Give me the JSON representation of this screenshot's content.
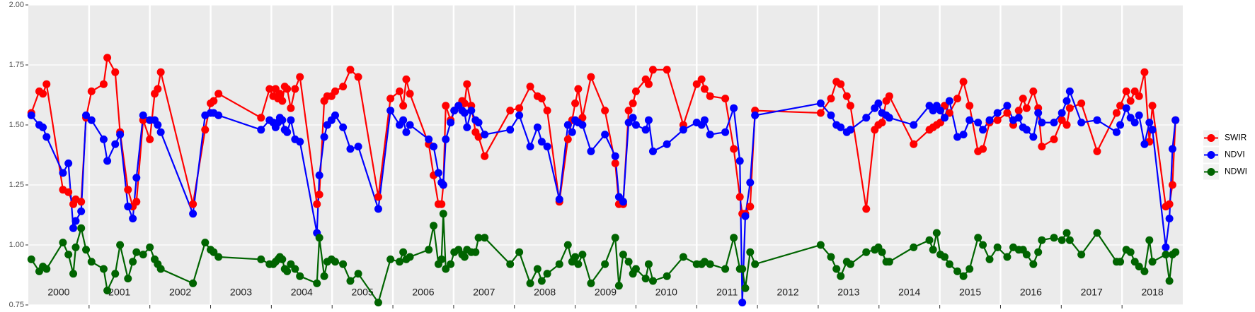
{
  "chart_data": {
    "type": "line",
    "x": [
      2000.05,
      2000.18,
      2000.24,
      2000.3,
      2000.57,
      2000.66,
      2000.74,
      2000.78,
      2000.87,
      2000.95,
      2001.04,
      2001.24,
      2001.3,
      2001.43,
      2001.51,
      2001.64,
      2001.72,
      2001.78,
      2001.89,
      2002.0,
      2002.08,
      2002.13,
      2002.18,
      2002.71,
      2002.91,
      2003.0,
      2003.05,
      2003.13,
      2003.83,
      2003.97,
      2004.03,
      2004.07,
      2004.11,
      2004.14,
      2004.18,
      2004.22,
      2004.26,
      2004.32,
      2004.39,
      2004.47,
      2004.75,
      2004.79,
      2004.87,
      2004.92,
      2004.99,
      2005.05,
      2005.18,
      2005.3,
      2005.43,
      2005.76,
      2005.96,
      2006.11,
      2006.17,
      2006.22,
      2006.28,
      2006.59,
      2006.67,
      2006.75,
      2006.8,
      2006.83,
      2006.87,
      2006.95,
      2007.01,
      2007.08,
      2007.14,
      2007.18,
      2007.22,
      2007.29,
      2007.36,
      2007.41,
      2007.51,
      2007.93,
      2008.08,
      2008.26,
      2008.38,
      2008.45,
      2008.54,
      2008.74,
      2008.88,
      2008.95,
      2009.0,
      2009.05,
      2009.12,
      2009.26,
      2009.49,
      2009.66,
      2009.72,
      2009.79,
      2009.88,
      2009.95,
      2010.0,
      2010.16,
      2010.21,
      2010.28,
      2010.51,
      2010.78,
      2011.0,
      2011.08,
      2011.13,
      2011.22,
      2011.47,
      2011.61,
      2011.71,
      2011.75,
      2011.8,
      2011.88,
      2011.96,
      2013.04,
      2013.21,
      2013.3,
      2013.37,
      2013.47,
      2013.53,
      2013.79,
      2013.93,
      2013.99,
      2014.05,
      2014.12,
      2014.17,
      2014.57,
      2014.83,
      2014.89,
      2014.95,
      2015.01,
      2015.08,
      2015.16,
      2015.29,
      2015.39,
      2015.49,
      2015.63,
      2015.71,
      2015.82,
      2015.95,
      2016.11,
      2016.21,
      2016.3,
      2016.37,
      2016.43,
      2016.54,
      2016.62,
      2016.68,
      2016.88,
      2017.01,
      2017.09,
      2017.14,
      2017.33,
      2017.59,
      2017.91,
      2017.97,
      2018.07,
      2018.14,
      2018.21,
      2018.28,
      2018.37,
      2018.45,
      2018.5,
      2018.72,
      2018.78,
      2018.83,
      2018.88
    ],
    "series": [
      {
        "name": "SWIR",
        "color": "#ff0000",
        "values": [
          1.55,
          1.64,
          1.63,
          1.67,
          1.23,
          1.22,
          1.17,
          1.19,
          1.18,
          1.53,
          1.64,
          1.67,
          1.78,
          1.72,
          1.47,
          1.23,
          1.16,
          1.18,
          1.52,
          1.44,
          1.63,
          1.65,
          1.72,
          1.17,
          1.48,
          1.59,
          1.6,
          1.63,
          1.53,
          1.65,
          1.62,
          1.65,
          1.61,
          1.63,
          1.6,
          1.66,
          1.65,
          1.57,
          1.65,
          1.7,
          1.17,
          1.21,
          1.6,
          1.62,
          1.62,
          1.64,
          1.66,
          1.73,
          1.7,
          1.2,
          1.61,
          1.64,
          1.58,
          1.69,
          1.63,
          1.42,
          1.29,
          1.17,
          1.17,
          1.25,
          1.58,
          1.52,
          1.56,
          1.58,
          1.6,
          1.59,
          1.67,
          1.58,
          1.47,
          1.45,
          1.37,
          1.56,
          1.57,
          1.66,
          1.62,
          1.61,
          1.56,
          1.18,
          1.44,
          1.52,
          1.59,
          1.65,
          1.53,
          1.7,
          1.56,
          1.34,
          1.17,
          1.17,
          1.56,
          1.59,
          1.64,
          1.69,
          1.67,
          1.73,
          1.73,
          1.5,
          1.67,
          1.69,
          1.65,
          1.62,
          1.61,
          1.4,
          1.2,
          1.13,
          1.13,
          1.16,
          1.56,
          1.55,
          1.61,
          1.68,
          1.67,
          1.62,
          1.58,
          1.15,
          1.48,
          1.5,
          1.51,
          1.6,
          1.62,
          1.42,
          1.48,
          1.49,
          1.5,
          1.51,
          1.58,
          1.55,
          1.61,
          1.68,
          1.58,
          1.39,
          1.4,
          1.51,
          1.52,
          1.55,
          1.5,
          1.56,
          1.61,
          1.57,
          1.64,
          1.57,
          1.41,
          1.44,
          1.52,
          1.5,
          1.57,
          1.59,
          1.39,
          1.55,
          1.58,
          1.64,
          1.6,
          1.64,
          1.62,
          1.72,
          1.43,
          1.58,
          1.16,
          1.17,
          1.25,
          1.52
        ]
      },
      {
        "name": "NDVI",
        "color": "#0000ff",
        "values": [
          1.54,
          1.5,
          1.49,
          1.45,
          1.3,
          1.34,
          1.07,
          1.1,
          1.14,
          1.54,
          1.52,
          1.44,
          1.35,
          1.42,
          1.46,
          1.16,
          1.11,
          1.28,
          1.54,
          1.52,
          1.52,
          1.5,
          1.47,
          1.13,
          1.54,
          1.55,
          1.55,
          1.54,
          1.48,
          1.52,
          1.51,
          1.49,
          1.51,
          1.53,
          1.52,
          1.48,
          1.47,
          1.52,
          1.44,
          1.43,
          1.05,
          1.29,
          1.45,
          1.5,
          1.52,
          1.54,
          1.49,
          1.4,
          1.41,
          1.15,
          1.56,
          1.5,
          1.52,
          1.47,
          1.5,
          1.44,
          1.41,
          1.3,
          1.26,
          1.25,
          1.44,
          1.51,
          1.56,
          1.58,
          1.56,
          1.55,
          1.49,
          1.56,
          1.52,
          1.51,
          1.46,
          1.48,
          1.54,
          1.41,
          1.49,
          1.43,
          1.41,
          1.19,
          1.5,
          1.47,
          1.52,
          1.51,
          1.5,
          1.39,
          1.46,
          1.37,
          1.2,
          1.18,
          1.51,
          1.53,
          1.5,
          1.48,
          1.52,
          1.39,
          1.42,
          1.48,
          1.51,
          1.5,
          1.52,
          1.46,
          1.47,
          1.57,
          1.35,
          0.76,
          1.12,
          1.26,
          1.54,
          1.59,
          1.54,
          1.5,
          1.49,
          1.47,
          1.48,
          1.53,
          1.57,
          1.59,
          1.55,
          1.54,
          1.53,
          1.5,
          1.58,
          1.56,
          1.58,
          1.56,
          1.53,
          1.6,
          1.45,
          1.46,
          1.52,
          1.51,
          1.48,
          1.52,
          1.55,
          1.58,
          1.52,
          1.53,
          1.49,
          1.48,
          1.45,
          1.55,
          1.51,
          1.51,
          1.55,
          1.6,
          1.64,
          1.51,
          1.52,
          1.47,
          1.5,
          1.57,
          1.53,
          1.51,
          1.54,
          1.42,
          1.51,
          1.48,
          0.99,
          1.11,
          1.4,
          1.52
        ]
      },
      {
        "name": "NDWI",
        "color": "#006400",
        "values": [
          0.94,
          0.89,
          0.91,
          0.9,
          1.01,
          0.96,
          0.88,
          0.99,
          1.07,
          0.98,
          0.93,
          0.9,
          0.81,
          0.88,
          1.0,
          0.86,
          0.93,
          0.97,
          0.96,
          0.99,
          0.94,
          0.92,
          0.9,
          0.84,
          1.01,
          0.98,
          0.97,
          0.95,
          0.94,
          0.92,
          0.92,
          0.93,
          0.94,
          0.95,
          0.94,
          0.9,
          0.89,
          0.92,
          0.9,
          0.87,
          0.84,
          1.03,
          0.87,
          0.93,
          0.94,
          0.93,
          0.92,
          0.85,
          0.88,
          0.76,
          0.94,
          0.93,
          0.97,
          0.94,
          0.95,
          0.98,
          1.08,
          0.92,
          0.94,
          1.13,
          0.9,
          0.92,
          0.97,
          0.98,
          0.96,
          0.95,
          0.98,
          0.97,
          0.97,
          1.03,
          1.03,
          0.92,
          0.97,
          0.84,
          0.9,
          0.85,
          0.88,
          0.92,
          1.0,
          0.93,
          0.95,
          0.92,
          0.96,
          0.84,
          0.92,
          1.03,
          0.83,
          0.96,
          0.93,
          0.88,
          0.9,
          0.86,
          0.92,
          0.85,
          0.87,
          0.95,
          0.92,
          0.92,
          0.93,
          0.92,
          0.9,
          1.03,
          0.9,
          0.9,
          0.82,
          0.97,
          0.92,
          1.0,
          0.95,
          0.9,
          0.87,
          0.93,
          0.92,
          0.97,
          0.98,
          0.99,
          0.97,
          0.93,
          0.93,
          0.99,
          1.02,
          0.98,
          1.05,
          0.96,
          0.95,
          0.92,
          0.89,
          0.87,
          0.9,
          1.03,
          1.0,
          0.94,
          0.99,
          0.95,
          0.99,
          0.98,
          0.98,
          0.96,
          0.92,
          0.97,
          1.02,
          1.03,
          1.02,
          1.05,
          1.02,
          0.96,
          1.05,
          0.93,
          0.93,
          0.98,
          0.97,
          0.93,
          0.91,
          0.89,
          1.02,
          0.93,
          0.96,
          0.85,
          0.96,
          0.97
        ]
      }
    ],
    "xlim": [
      2000,
      2019
    ],
    "xticks": [
      {
        "value": 2000.5,
        "label": "2000"
      },
      {
        "value": 2001.5,
        "label": "2001"
      },
      {
        "value": 2002.5,
        "label": "2002"
      },
      {
        "value": 2003.5,
        "label": "2003"
      },
      {
        "value": 2004.5,
        "label": "2004"
      },
      {
        "value": 2005.5,
        "label": "2005"
      },
      {
        "value": 2006.5,
        "label": "2006"
      },
      {
        "value": 2007.5,
        "label": "2007"
      },
      {
        "value": 2008.5,
        "label": "2008"
      },
      {
        "value": 2009.5,
        "label": "2009"
      },
      {
        "value": 2010.5,
        "label": "2010"
      },
      {
        "value": 2011.5,
        "label": "2011"
      },
      {
        "value": 2012.5,
        "label": "2012"
      },
      {
        "value": 2013.5,
        "label": "2013"
      },
      {
        "value": 2014.5,
        "label": "2014"
      },
      {
        "value": 2015.5,
        "label": "2015"
      },
      {
        "value": 2016.5,
        "label": "2016"
      },
      {
        "value": 2017.5,
        "label": "2017"
      },
      {
        "value": 2018.5,
        "label": "2018"
      }
    ],
    "ylim": [
      0.75,
      2.0
    ],
    "yticks": [
      0.75,
      {
        "value": 1.0,
        "label": "1.00"
      },
      1.25,
      {
        "value": 1.5,
        "label": "1.50"
      },
      1.75,
      {
        "value": 2.0,
        "label": "2.00"
      }
    ],
    "grid": true,
    "legend": "right"
  }
}
